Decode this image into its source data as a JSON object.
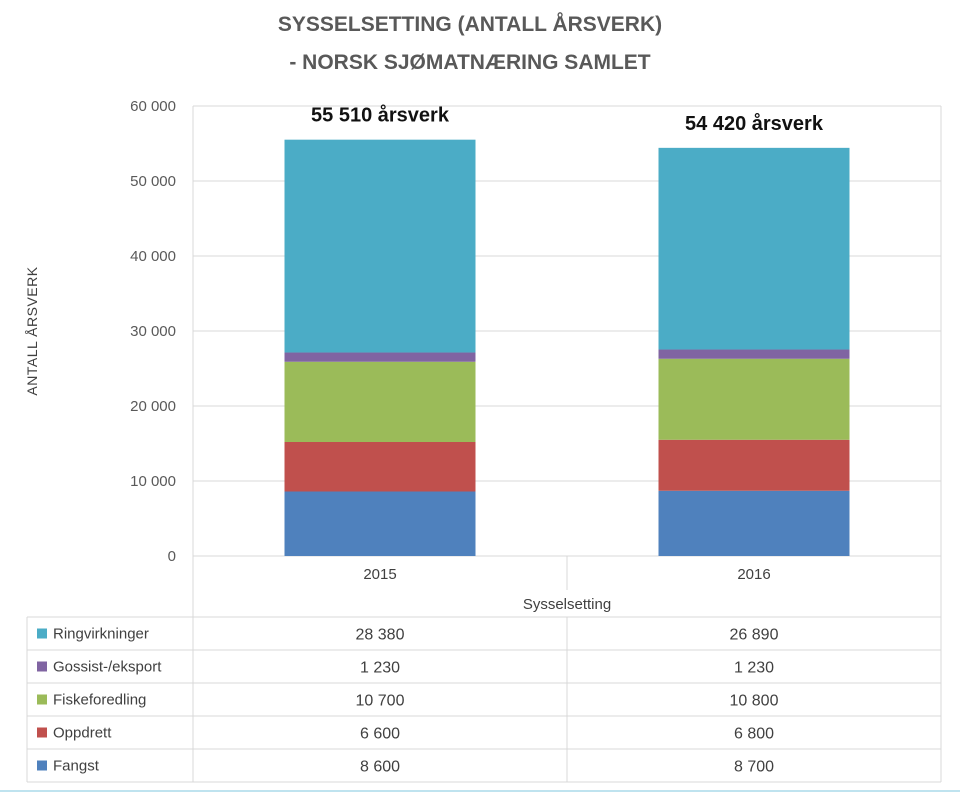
{
  "chart_data": {
    "type": "bar",
    "stacked": true,
    "title_lines": [
      "SYSSELSETTING (ANTALL ÅRSVERK)",
      "- NORSK SJØMATNÆRING SAMLET"
    ],
    "ylabel": "ANTALL ÅRSVERK",
    "xlabel": "Sysselsetting",
    "ylim": [
      0,
      60000
    ],
    "yticks": [
      0,
      10000,
      20000,
      30000,
      40000,
      50000,
      60000
    ],
    "ytick_labels": [
      "0",
      "10 000",
      "20 000",
      "30 000",
      "40 000",
      "50 000",
      "60 000"
    ],
    "categories": [
      "2015",
      "2016"
    ],
    "totals": [
      "55 510 årsverk",
      "54 420 årsverk"
    ],
    "series": [
      {
        "name": "Fangst",
        "color": "#4f81bd",
        "values": [
          8600,
          8700
        ],
        "labels": [
          "8 600",
          "8 700"
        ]
      },
      {
        "name": "Oppdrett",
        "color": "#c0504d",
        "values": [
          6600,
          6800
        ],
        "labels": [
          "6 600",
          "6 800"
        ]
      },
      {
        "name": "Fiskeforedling",
        "color": "#9bbb59",
        "values": [
          10700,
          10800
        ],
        "labels": [
          "10 700",
          "10 800"
        ]
      },
      {
        "name": "Gossist-/eksport",
        "color": "#8064a2",
        "values": [
          1230,
          1230
        ],
        "labels": [
          "1 230",
          "1 230"
        ]
      },
      {
        "name": "Ringvirkninger",
        "color": "#4bacc6",
        "values": [
          28380,
          26890
        ],
        "labels": [
          "28 380",
          "26 890"
        ]
      }
    ],
    "gridlines": true
  }
}
